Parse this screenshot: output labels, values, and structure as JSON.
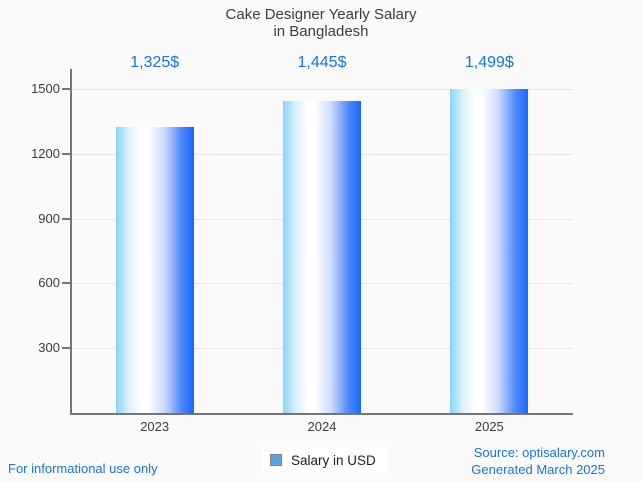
{
  "title": {
    "line1": "Cake Designer Yearly Salary",
    "line2": "in Bangladesh"
  },
  "chart_data": {
    "type": "bar",
    "title": "Cake Designer Yearly Salary in Bangladesh",
    "categories": [
      "2023",
      "2024",
      "2025"
    ],
    "values": [
      1325,
      1445,
      1499
    ],
    "value_labels": [
      "1,325$",
      "1,445$",
      "1,499$"
    ],
    "series_name": "Salary in USD",
    "xlabel": "",
    "ylabel": "",
    "ylim": [
      0,
      1500
    ],
    "yticks": [
      300,
      600,
      900,
      1200,
      1500
    ],
    "grid": true,
    "legend_position": "bottom-center"
  },
  "legend": {
    "label": "Salary in USD",
    "marker_color": "#5da0e8",
    "marker_border": "#8a8a8a"
  },
  "footer": {
    "note": "For informational use only",
    "source_line1": "Source: optisalary.com",
    "source_line2": "Generated March 2025"
  },
  "colors": {
    "accent_blue": "#1a73e8",
    "axis": "#757575",
    "grid": "#e6e6e6",
    "text": "#3c3c3c",
    "bar_left": "#8ad4f8",
    "bar_mid": "#ffffff",
    "bar_right": "#1668fb",
    "background": "#fafafa"
  }
}
